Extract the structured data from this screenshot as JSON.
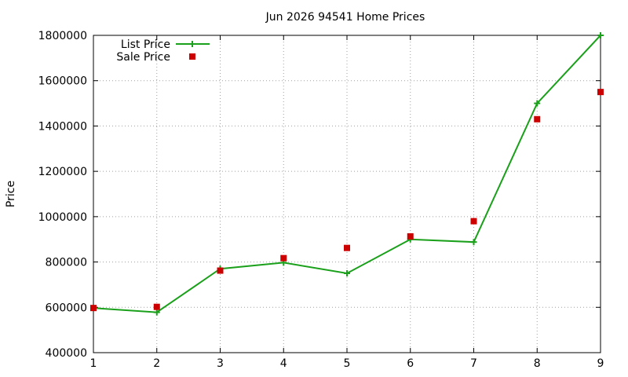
{
  "chart_data": {
    "type": "line",
    "title": "Jun 2026 94541 Home Prices",
    "xlabel": "",
    "ylabel": "Price",
    "xlim": [
      1,
      9
    ],
    "ylim": [
      400000,
      1800000
    ],
    "x_ticks": [
      "1",
      "2",
      "3",
      "4",
      "5",
      "6",
      "7",
      "8",
      "9"
    ],
    "y_ticks": [
      "400000",
      "600000",
      "800000",
      "1000000",
      "1200000",
      "1400000",
      "1600000",
      "1800000"
    ],
    "grid": true,
    "legend_position": "top-left",
    "series": [
      {
        "name": "List Price",
        "style": "line-with-plus-markers",
        "color": "#1aa01a",
        "points": [
          {
            "x": 1,
            "y": 597000
          },
          {
            "x": 2,
            "y": 578000
          },
          {
            "x": 3,
            "y": 770000
          },
          {
            "x": 4,
            "y": 797000
          },
          {
            "x": 5,
            "y": 750000
          },
          {
            "x": 6,
            "y": 900000
          },
          {
            "x": 7,
            "y": 888000
          },
          {
            "x": 8,
            "y": 1500000
          },
          {
            "x": 9,
            "y": 1800000
          }
        ]
      },
      {
        "name": "Sale Price",
        "style": "square-markers",
        "color": "#cc0000",
        "points": [
          {
            "x": 1,
            "y": 597000
          },
          {
            "x": 2,
            "y": 602000
          },
          {
            "x": 3,
            "y": 762000
          },
          {
            "x": 4,
            "y": 817000
          },
          {
            "x": 5,
            "y": 862000
          },
          {
            "x": 6,
            "y": 913000
          },
          {
            "x": 7,
            "y": 980000
          },
          {
            "x": 8,
            "y": 1430000
          },
          {
            "x": 9,
            "y": 1550000
          }
        ]
      }
    ]
  }
}
